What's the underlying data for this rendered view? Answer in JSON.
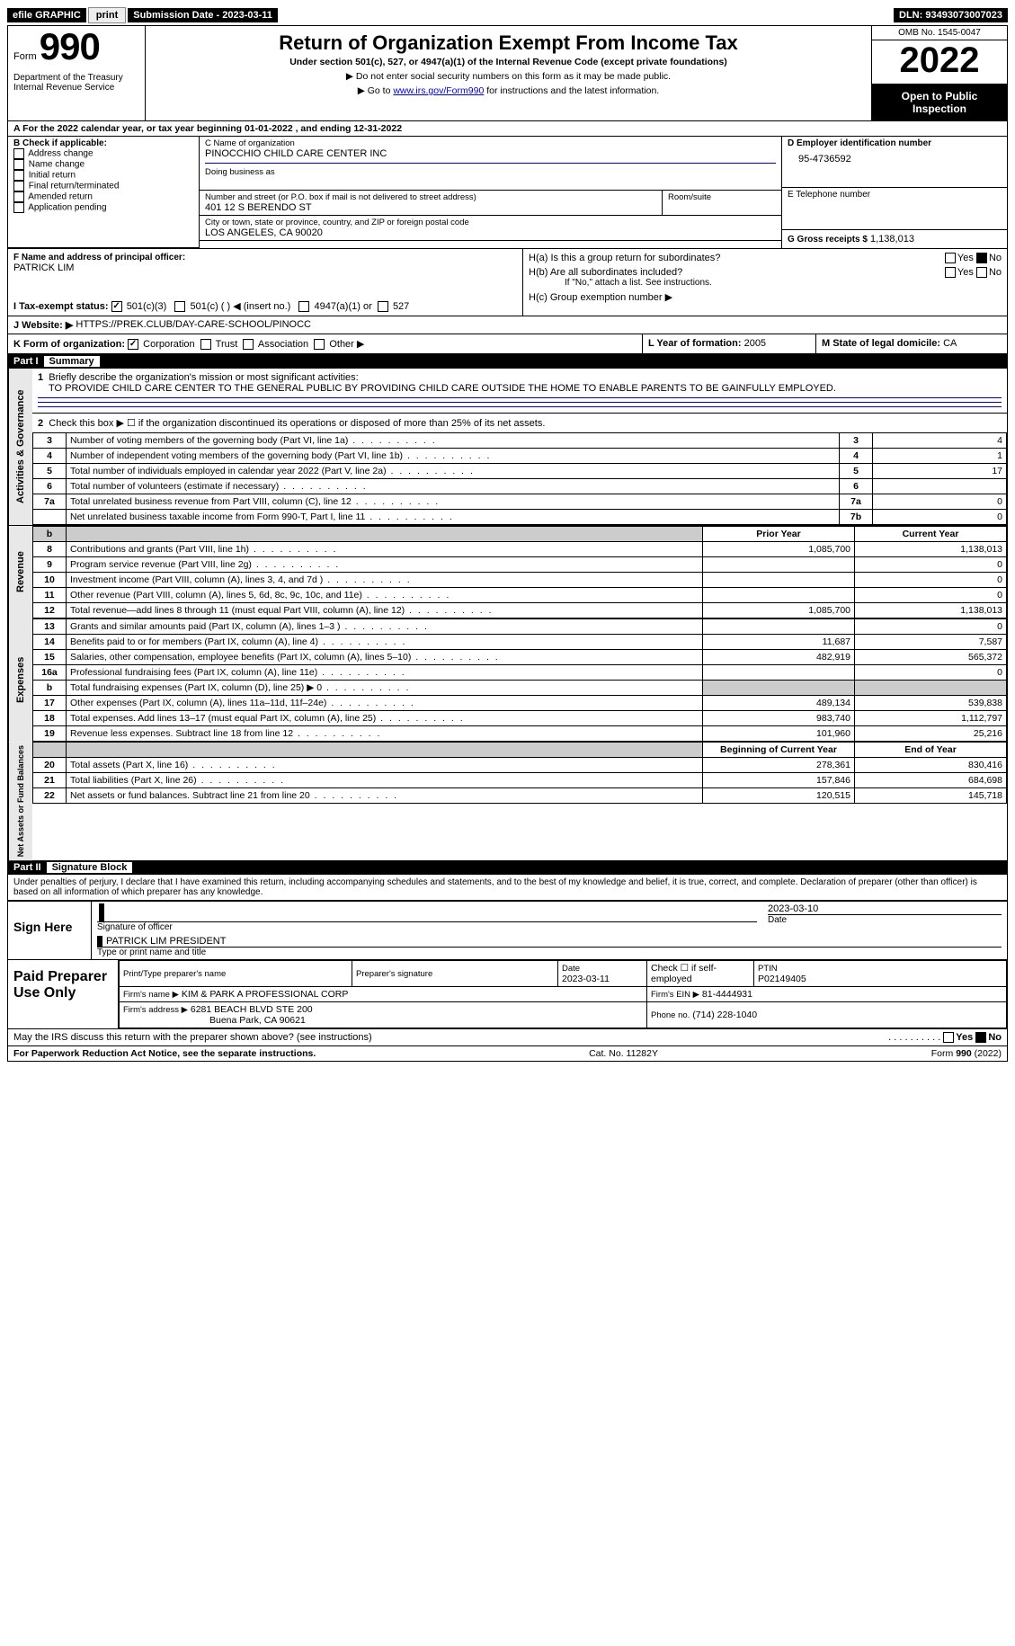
{
  "topbar": {
    "efile_label": "efile GRAPHIC",
    "print_btn": "print",
    "submission_label": "Submission Date - 2023-03-11",
    "dln_label": "DLN: 93493073007023"
  },
  "header": {
    "form_word": "Form",
    "form_num": "990",
    "dept1": "Department of the Treasury",
    "dept2": "Internal Revenue Service",
    "title": "Return of Organization Exempt From Income Tax",
    "sub": "Under section 501(c), 527, or 4947(a)(1) of the Internal Revenue Code (except private foundations)",
    "note1": "▶ Do not enter social security numbers on this form as it may be made public.",
    "note2_pre": "▶ Go to ",
    "note2_link": "www.irs.gov/Form990",
    "note2_post": " for instructions and the latest information.",
    "omb": "OMB No. 1545-0047",
    "year": "2022",
    "open": "Open to Public Inspection"
  },
  "period": {
    "line": "A For the 2022 calendar year, or tax year beginning 01-01-2022    , and ending 12-31-2022"
  },
  "blockB": {
    "title": "B Check if applicable:",
    "opts": [
      "Address change",
      "Name change",
      "Initial return",
      "Final return/terminated",
      "Amended return",
      "Application pending"
    ]
  },
  "blockC": {
    "name_lbl": "C Name of organization",
    "name": "PINOCCHIO CHILD CARE CENTER INC",
    "dba_lbl": "Doing business as",
    "dba": "",
    "addr_lbl": "Number and street (or P.O. box if mail is not delivered to street address)",
    "room_lbl": "Room/suite",
    "addr": "401 12 S BERENDO ST",
    "city_lbl": "City or town, state or province, country, and ZIP or foreign postal code",
    "city": "LOS ANGELES, CA  90020"
  },
  "blockD": {
    "lbl": "D Employer identification number",
    "val": "95-4736592"
  },
  "blockE": {
    "lbl": "E Telephone number",
    "val": ""
  },
  "blockG": {
    "lbl": "G Gross receipts $",
    "val": "1,138,013"
  },
  "blockF": {
    "lbl": "F Name and address of principal officer:",
    "val": "PATRICK LIM"
  },
  "blockH": {
    "ha": "H(a)  Is this a group return for subordinates?",
    "hb": "H(b)  Are all subordinates included?",
    "hb_note": "If \"No,\" attach a list. See instructions.",
    "hc": "H(c)  Group exemption number ▶",
    "yes": "Yes",
    "no": "No"
  },
  "blockI": {
    "lbl": "I    Tax-exempt status:",
    "o1": "501(c)(3)",
    "o2": "501(c) (   ) ◀ (insert no.)",
    "o3": "4947(a)(1) or",
    "o4": "527"
  },
  "blockJ": {
    "lbl": "J    Website: ▶",
    "val": "HTTPS://PREK.CLUB/DAY-CARE-SCHOOL/PINOCC"
  },
  "blockK": {
    "lbl": "K Form of organization:",
    "o1": "Corporation",
    "o2": "Trust",
    "o3": "Association",
    "o4": "Other ▶"
  },
  "blockL": {
    "lbl": "L Year of formation:",
    "val": "2005"
  },
  "blockM": {
    "lbl": "M State of legal domicile:",
    "val": "CA"
  },
  "part1": {
    "num": "Part I",
    "title": "Summary",
    "q1_lbl": "1",
    "q1": "Briefly describe the organization's mission or most significant activities:",
    "q1_text": "TO PROVIDE CHILD CARE CENTER TO THE GENERAL PUBLIC BY PROVIDING CHILD CARE OUTSIDE THE HOME TO ENABLE PARENTS TO BE GAINFULLY EMPLOYED.",
    "q2_lbl": "2",
    "q2": "Check this box ▶  ☐  if the organization discontinued its operations or disposed of more than 25% of its net assets.",
    "lines_ag": [
      {
        "n": "3",
        "d": "Number of voting members of the governing body (Part VI, line 1a)",
        "box": "3",
        "v": "4"
      },
      {
        "n": "4",
        "d": "Number of independent voting members of the governing body (Part VI, line 1b)",
        "box": "4",
        "v": "1"
      },
      {
        "n": "5",
        "d": "Total number of individuals employed in calendar year 2022 (Part V, line 2a)",
        "box": "5",
        "v": "17"
      },
      {
        "n": "6",
        "d": "Total number of volunteers (estimate if necessary)",
        "box": "6",
        "v": ""
      },
      {
        "n": "7a",
        "d": "Total unrelated business revenue from Part VIII, column (C), line 12",
        "box": "7a",
        "v": "0"
      },
      {
        "n": " ",
        "d": "Net unrelated business taxable income from Form 990-T, Part I, line 11",
        "box": "7b",
        "v": "0"
      }
    ],
    "col_prior": "Prior Year",
    "col_curr": "Current Year",
    "rev_lines": [
      {
        "n": "8",
        "d": "Contributions and grants (Part VIII, line 1h)",
        "p": "1,085,700",
        "c": "1,138,013"
      },
      {
        "n": "9",
        "d": "Program service revenue (Part VIII, line 2g)",
        "p": "",
        "c": "0"
      },
      {
        "n": "10",
        "d": "Investment income (Part VIII, column (A), lines 3, 4, and 7d )",
        "p": "",
        "c": "0"
      },
      {
        "n": "11",
        "d": "Other revenue (Part VIII, column (A), lines 5, 6d, 8c, 9c, 10c, and 11e)",
        "p": "",
        "c": "0"
      },
      {
        "n": "12",
        "d": "Total revenue—add lines 8 through 11 (must equal Part VIII, column (A), line 12)",
        "p": "1,085,700",
        "c": "1,138,013"
      }
    ],
    "exp_lines": [
      {
        "n": "13",
        "d": "Grants and similar amounts paid (Part IX, column (A), lines 1–3 )",
        "p": "",
        "c": "0"
      },
      {
        "n": "14",
        "d": "Benefits paid to or for members (Part IX, column (A), line 4)",
        "p": "11,687",
        "c": "7,587"
      },
      {
        "n": "15",
        "d": "Salaries, other compensation, employee benefits (Part IX, column (A), lines 5–10)",
        "p": "482,919",
        "c": "565,372"
      },
      {
        "n": "16a",
        "d": "Professional fundraising fees (Part IX, column (A), line 11e)",
        "p": "",
        "c": "0"
      },
      {
        "n": "b",
        "d": "Total fundraising expenses (Part IX, column (D), line 25) ▶ 0",
        "p": "shade",
        "c": "shade"
      },
      {
        "n": "17",
        "d": "Other expenses (Part IX, column (A), lines 11a–11d, 11f–24e)",
        "p": "489,134",
        "c": "539,838"
      },
      {
        "n": "18",
        "d": "Total expenses. Add lines 13–17 (must equal Part IX, column (A), line 25)",
        "p": "983,740",
        "c": "1,112,797"
      },
      {
        "n": "19",
        "d": "Revenue less expenses. Subtract line 18 from line 12",
        "p": "101,960",
        "c": "25,216"
      }
    ],
    "col_begin": "Beginning of Current Year",
    "col_end": "End of Year",
    "na_lines": [
      {
        "n": "20",
        "d": "Total assets (Part X, line 16)",
        "p": "278,361",
        "c": "830,416"
      },
      {
        "n": "21",
        "d": "Total liabilities (Part X, line 26)",
        "p": "157,846",
        "c": "684,698"
      },
      {
        "n": "22",
        "d": "Net assets or fund balances. Subtract line 21 from line 20",
        "p": "120,515",
        "c": "145,718"
      }
    ],
    "vtab_ag": "Activities & Governance",
    "vtab_rev": "Revenue",
    "vtab_exp": "Expenses",
    "vtab_na": "Net Assets or Fund Balances"
  },
  "part2": {
    "num": "Part II",
    "title": "Signature Block",
    "decl": "Under penalties of perjury, I declare that I have examined this return, including accompanying schedules and statements, and to the best of my knowledge and belief, it is true, correct, and complete. Declaration of preparer (other than officer) is based on all information of which preparer has any knowledge.",
    "sign_here": "Sign Here",
    "sig_officer": "Signature of officer",
    "sig_date": "Date",
    "sig_date_val": "2023-03-10",
    "name_title": "PATRICK LIM PRESIDENT",
    "type_name": "Type or print name and title",
    "paid": "Paid Preparer Use Only",
    "pp_name_lbl": "Print/Type preparer's name",
    "pp_name": "",
    "pp_sig_lbl": "Preparer's signature",
    "pp_date_lbl": "Date",
    "pp_date": "2023-03-11",
    "pp_check_lbl": "Check ☐ if self-employed",
    "pp_ptin_lbl": "PTIN",
    "pp_ptin": "P02149405",
    "firm_name_lbl": "Firm's name    ▶",
    "firm_name": "KIM & PARK A PROFESSIONAL CORP",
    "firm_ein_lbl": "Firm's EIN ▶",
    "firm_ein": "81-4444931",
    "firm_addr_lbl": "Firm's address ▶",
    "firm_addr1": "6281 BEACH BLVD STE 200",
    "firm_addr2": "Buena Park, CA  90621",
    "firm_phone_lbl": "Phone no.",
    "firm_phone": "(714) 228-1040",
    "may_irs": "May the IRS discuss this return with the preparer shown above? (see instructions)"
  },
  "footer": {
    "pra": "For Paperwork Reduction Act Notice, see the separate instructions.",
    "cat": "Cat. No. 11282Y",
    "form": "Form 990 (2022)"
  }
}
